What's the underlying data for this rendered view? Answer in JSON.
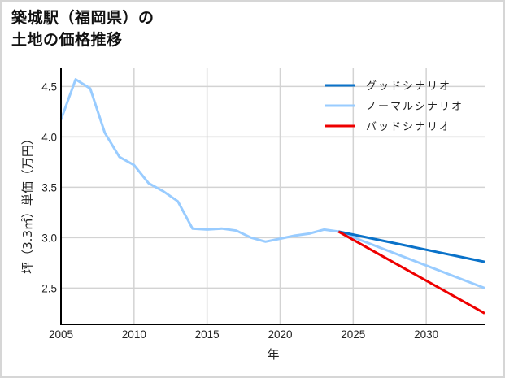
{
  "title": {
    "line1": "築城駅（福岡県）の",
    "line2": "土地の価格推移"
  },
  "colors": {
    "good": "#0a72c9",
    "normal": "#99ccff",
    "bad": "#ee0000",
    "grid": "#d3d3d3",
    "axis": "#000000"
  },
  "chart_data": {
    "type": "line",
    "title": "築城駅（福岡県）の土地の価格推移",
    "xlabel": "年",
    "ylabel": "坪（3.3㎡）単価（万円）",
    "xlim": [
      2005,
      2034
    ],
    "ylim": [
      2.14,
      4.68
    ],
    "x_ticks": [
      "2005",
      "2010",
      "2015",
      "2020",
      "2025",
      "2030"
    ],
    "y_ticks": [
      "2.5",
      "3.0",
      "3.5",
      "4.0",
      "4.5"
    ],
    "grid": true,
    "legend_position": "upper right",
    "series": [
      {
        "name": "グッドシナリオ",
        "color": "#0a72c9",
        "x": [
          2024,
          2034
        ],
        "values": [
          3.06,
          2.76
        ]
      },
      {
        "name": "ノーマルシナリオ",
        "color": "#99ccff",
        "x": [
          2005,
          2006,
          2007,
          2008,
          2009,
          2010,
          2011,
          2012,
          2013,
          2014,
          2015,
          2016,
          2017,
          2018,
          2019,
          2020,
          2021,
          2022,
          2023,
          2024,
          2034
        ],
        "values": [
          4.17,
          4.57,
          4.48,
          4.04,
          3.8,
          3.72,
          3.54,
          3.46,
          3.36,
          3.09,
          3.08,
          3.09,
          3.07,
          3.0,
          2.96,
          2.99,
          3.02,
          3.04,
          3.08,
          3.06,
          2.5
        ]
      },
      {
        "name": "バッドシナリオ",
        "color": "#ee0000",
        "x": [
          2024,
          2034
        ],
        "values": [
          3.06,
          2.25
        ]
      }
    ]
  }
}
